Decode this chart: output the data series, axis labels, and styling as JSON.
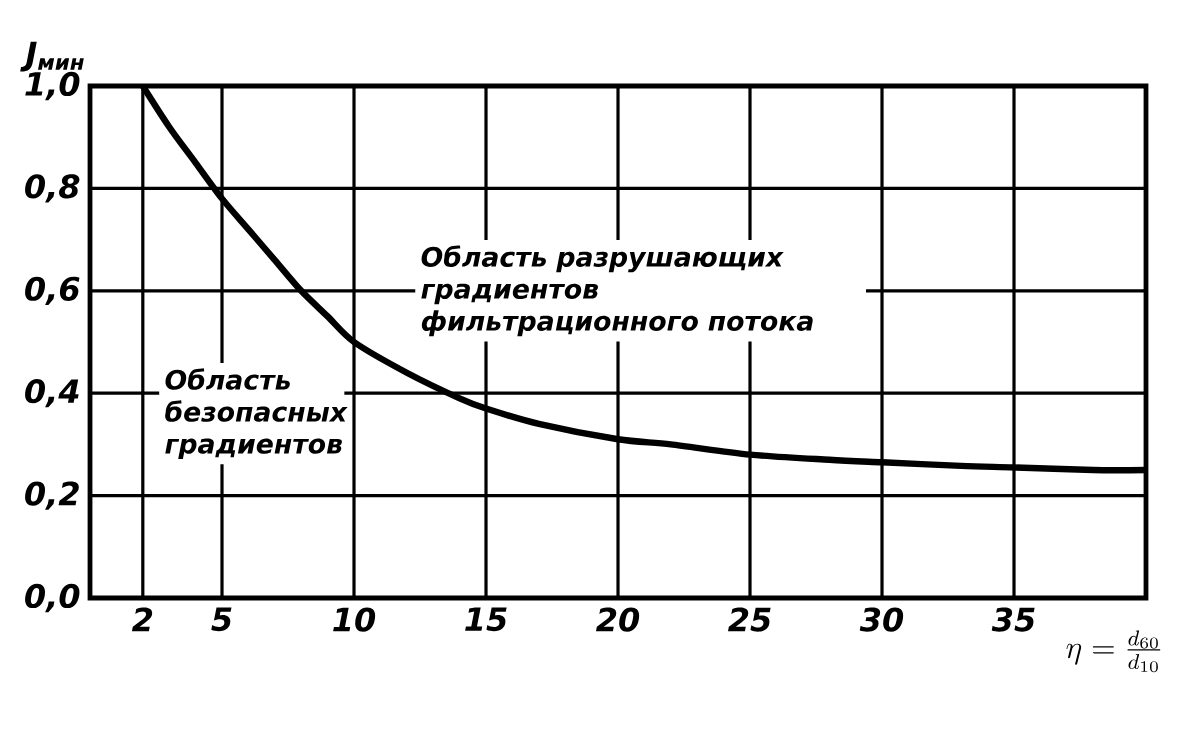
{
  "chart_data": {
    "type": "line",
    "ylabel": "J$_{мин}$",
    "xlabel": "\\eta = \\frac{d_{60}}{d_{10}}",
    "x": [
      2,
      3,
      4,
      5,
      6,
      7,
      8,
      9,
      10,
      12,
      14,
      15,
      17,
      20,
      22,
      25,
      28,
      30,
      33,
      35,
      38,
      40
    ],
    "series": [
      {
        "color": "#000000",
        "values": [
          1.0,
          0.92,
          0.85,
          0.78,
          0.72,
          0.66,
          0.6,
          0.55,
          0.5,
          0.44,
          0.39,
          0.37,
          0.34,
          0.31,
          0.3,
          0.28,
          0.27,
          0.265,
          0.258,
          0.255,
          0.25,
          0.25
        ]
      }
    ],
    "xlim": [
      0,
      40
    ],
    "xticks": [
      2,
      5,
      10,
      15,
      20,
      25,
      30,
      35
    ],
    "ylim": [
      0,
      1
    ],
    "yticks": [
      {
        "value": 0,
        "label": "0,0"
      },
      {
        "value": 0.2,
        "label": "0,2"
      },
      {
        "value": 0.4,
        "label": "0,4"
      },
      {
        "value": 0.6,
        "label": "0,6"
      },
      {
        "value": 0.8,
        "label": "0,8"
      },
      {
        "value": 1.0,
        "label": "1,0"
      }
    ],
    "grid": true,
    "marker": "none",
    "line_style": "solid",
    "annotations": [
      "Область безопасных градиентов",
      "Область разрушающих градиентов фильтрационного потока"
    ]
  }
}
